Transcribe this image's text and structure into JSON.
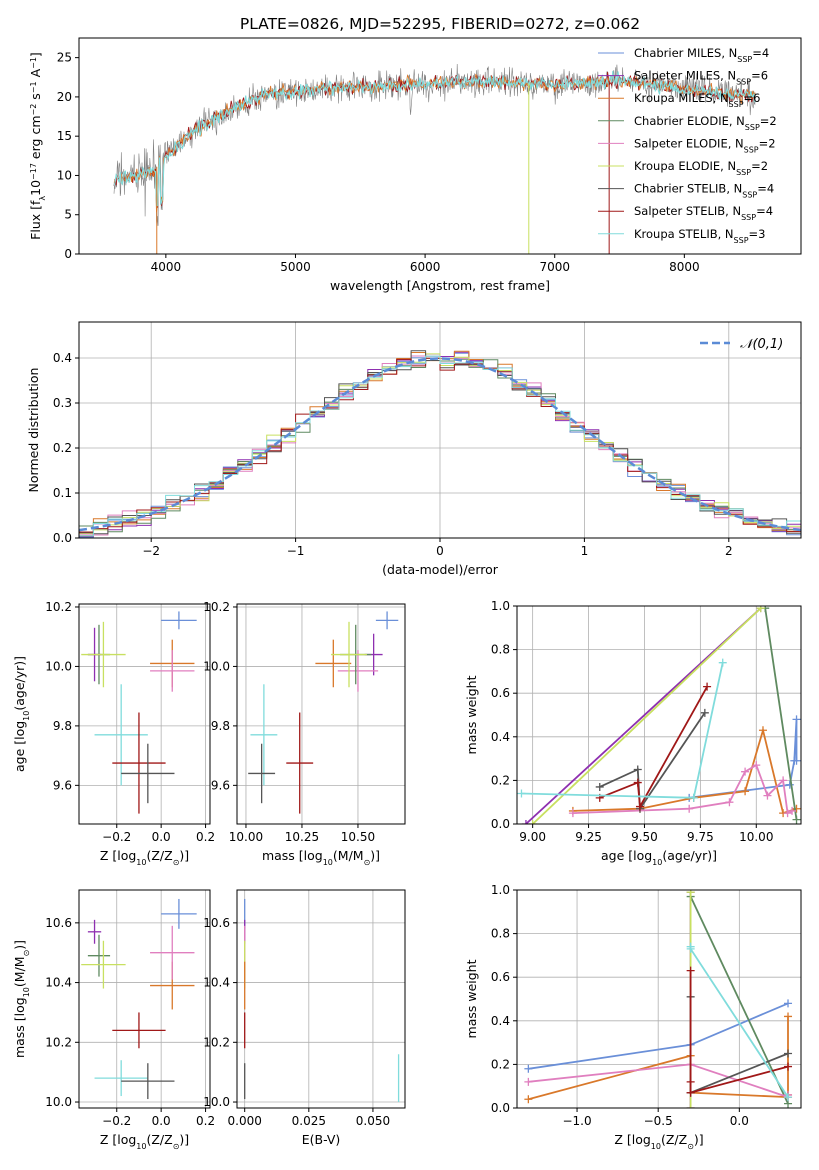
{
  "figure_title": "PLATE=0826, MJD=52295, FIBERID=0272, z=0.062",
  "colors": {
    "cm": "#6a8fd8",
    "sm": "#8e2fb0",
    "km": "#d9782a",
    "ce": "#5f8a60",
    "se": "#e07fbf",
    "ke": "#c8e060",
    "cs": "#555555",
    "ss": "#a01818",
    "ks": "#80dcdc",
    "gauss": "#5b8bd6"
  },
  "legend": {
    "cm": {
      "pre": "Chabrier MILES, N",
      "sub": "SSP",
      "post": "=4"
    },
    "sm": {
      "pre": "Salpeter MILES, N",
      "sub": "SSP",
      "post": "=6"
    },
    "km": {
      "pre": "Kroupa MILES, N",
      "sub": "SSP",
      "post": "=6"
    },
    "ce": {
      "pre": "Chabrier ELODIE, N",
      "sub": "SSP",
      "post": "=2"
    },
    "se": {
      "pre": "Salpeter ELODIE, N",
      "sub": "SSP",
      "post": "=2"
    },
    "ke": {
      "pre": "Kroupa ELODIE, N",
      "sub": "SSP",
      "post": "=2"
    },
    "cs": {
      "pre": "Chabrier STELIB, N",
      "sub": "SSP",
      "post": "=4"
    },
    "ss": {
      "pre": "Salpeter STELIB, N",
      "sub": "SSP",
      "post": "=4"
    },
    "ks": {
      "pre": "Kroupa STELIB, N",
      "sub": "SSP",
      "post": "=3"
    }
  },
  "chart_data": [
    {
      "id": "spectrum",
      "type": "line",
      "xlabel": "wavelength [Angstrom, rest frame]",
      "ylabel": "Flux [f_λ10^-17 erg cm^-2 s^-1 A^-1]",
      "xlim": [
        3330,
        8900
      ],
      "ylim": [
        0,
        27.5
      ],
      "xticks": [
        4000,
        5000,
        6000,
        7000,
        8000
      ],
      "yticks": [
        0,
        5,
        10,
        15,
        20,
        25
      ],
      "x_range": [
        3600,
        8550
      ],
      "continuum_anchors": [
        [
          3600,
          9.5
        ],
        [
          3900,
          10.5
        ],
        [
          4000,
          12.5
        ],
        [
          4200,
          15.5
        ],
        [
          4500,
          18.5
        ],
        [
          4800,
          20.5
        ],
        [
          5200,
          21.0
        ],
        [
          5800,
          21.5
        ],
        [
          6500,
          22.0
        ],
        [
          7000,
          21.5
        ],
        [
          7500,
          22.2
        ],
        [
          8000,
          21.0
        ],
        [
          8550,
          20.0
        ]
      ],
      "spikes": [
        {
          "x": 3930,
          "y": 0.0,
          "series": "km"
        },
        {
          "x": 6800,
          "y": 0.0,
          "series": "ke"
        },
        {
          "x": 7420,
          "y": 0.0,
          "series": "ss"
        }
      ],
      "grid": false,
      "legend_position": "right"
    },
    {
      "id": "residuals",
      "type": "histogram",
      "xlabel": "(data-model)/error",
      "ylabel": "Normed distribution",
      "xlim": [
        -2.5,
        2.5
      ],
      "ylim": [
        0,
        0.48
      ],
      "xticks": [
        -2,
        -1,
        0,
        1,
        2
      ],
      "yticks": [
        0.0,
        0.1,
        0.2,
        0.3,
        0.4
      ],
      "bins": {
        "start": -2.5,
        "width": 0.1,
        "count": 50
      },
      "reference": {
        "label": "𝒩(0,1)",
        "mean": 0,
        "sigma": 1
      },
      "grid": true,
      "legend_position": "top-right"
    },
    {
      "id": "age_vs_Z",
      "type": "errorbar",
      "xlabel": "Z [log10(Z/Z☉)]",
      "ylabel": "age  [log10(age/yr)]",
      "xlim": [
        -0.37,
        0.22
      ],
      "ylim": [
        9.47,
        10.21
      ],
      "xticks": [
        -0.2,
        0.0,
        0.2
      ],
      "yticks": [
        9.6,
        9.8,
        10.0,
        10.2
      ],
      "points": [
        {
          "series": "cm",
          "x": 0.08,
          "y": 10.155,
          "xerr": 0.08,
          "yerr": 0.03
        },
        {
          "series": "km",
          "x": 0.05,
          "y": 10.01,
          "xerr": 0.1,
          "yerr": 0.08
        },
        {
          "series": "se",
          "x": 0.05,
          "y": 9.985,
          "xerr": 0.1,
          "yerr": 0.07
        },
        {
          "series": "ce",
          "x": -0.28,
          "y": 10.04,
          "xerr": 0.05,
          "yerr": 0.1
        },
        {
          "series": "sm",
          "x": -0.3,
          "y": 10.04,
          "xerr": 0.03,
          "yerr": 0.09
        },
        {
          "series": "ke",
          "x": -0.26,
          "y": 10.04,
          "xerr": 0.1,
          "yerr": 0.11
        },
        {
          "series": "ks",
          "x": -0.18,
          "y": 9.77,
          "xerr": 0.12,
          "yerr": 0.17
        },
        {
          "series": "ss",
          "x": -0.1,
          "y": 9.675,
          "xerr": 0.12,
          "yerr": 0.17
        },
        {
          "series": "cs",
          "x": -0.06,
          "y": 9.64,
          "xerr": 0.12,
          "yerr": 0.1
        }
      ],
      "grid": true
    },
    {
      "id": "age_vs_mass",
      "type": "errorbar",
      "xlabel": "mass [log10(M/M☉)]",
      "ylabel": "",
      "xlim": [
        9.96,
        10.71
      ],
      "ylim": [
        9.47,
        10.21
      ],
      "xticks": [
        10.0,
        10.25,
        10.5
      ],
      "yticks": [
        9.6,
        9.8,
        10.0,
        10.2
      ],
      "points": [
        {
          "series": "cm",
          "x": 10.63,
          "y": 10.155,
          "xerr": 0.05,
          "yerr": 0.03
        },
        {
          "series": "sm",
          "x": 10.57,
          "y": 10.04,
          "xerr": 0.04,
          "yerr": 0.07
        },
        {
          "series": "km",
          "x": 10.39,
          "y": 10.01,
          "xerr": 0.08,
          "yerr": 0.08
        },
        {
          "series": "se",
          "x": 10.5,
          "y": 9.985,
          "xerr": 0.09,
          "yerr": 0.07
        },
        {
          "series": "ce",
          "x": 10.49,
          "y": 10.04,
          "xerr": 0.07,
          "yerr": 0.1
        },
        {
          "series": "ke",
          "x": 10.46,
          "y": 10.04,
          "xerr": 0.08,
          "yerr": 0.11
        },
        {
          "series": "ks",
          "x": 10.08,
          "y": 9.77,
          "xerr": 0.06,
          "yerr": 0.17
        },
        {
          "series": "ss",
          "x": 10.24,
          "y": 9.675,
          "xerr": 0.06,
          "yerr": 0.17
        },
        {
          "series": "cs",
          "x": 10.07,
          "y": 9.64,
          "xerr": 0.06,
          "yerr": 0.1
        }
      ],
      "grid": true
    },
    {
      "id": "weight_vs_age",
      "type": "line",
      "xlabel": "age  [log10(age/yr)]",
      "ylabel": "mass weight",
      "xlim": [
        8.93,
        10.2
      ],
      "ylim": [
        0,
        1.0
      ],
      "xticks": [
        9.0,
        9.25,
        9.5,
        9.75,
        10.0
      ],
      "yticks": [
        0.0,
        0.2,
        0.4,
        0.6,
        0.8,
        1.0
      ],
      "series": [
        {
          "key": "cm",
          "x": [
            9.7,
            10.15,
            10.17,
            10.18,
            10.18
          ],
          "y": [
            0.12,
            0.18,
            0.29,
            0.48,
            0.29
          ]
        },
        {
          "key": "sm",
          "x": [
            8.97,
            10.02
          ],
          "y": [
            0.0,
            0.99
          ]
        },
        {
          "key": "km",
          "x": [
            9.18,
            9.48,
            9.72,
            9.95,
            10.03,
            10.12,
            10.18
          ],
          "y": [
            0.06,
            0.07,
            0.12,
            0.15,
            0.43,
            0.05,
            0.07
          ]
        },
        {
          "key": "ce",
          "x": [
            10.04,
            10.18
          ],
          "y": [
            0.99,
            0.02
          ]
        },
        {
          "key": "se",
          "x": [
            9.18,
            9.7,
            9.88,
            9.95,
            10.0,
            10.05,
            10.12,
            10.14,
            10.16
          ],
          "y": [
            0.05,
            0.07,
            0.1,
            0.24,
            0.27,
            0.13,
            0.2,
            0.05,
            0.06
          ]
        },
        {
          "key": "ke",
          "x": [
            9.0,
            10.02
          ],
          "y": [
            0.0,
            0.99
          ]
        },
        {
          "key": "cs",
          "x": [
            9.3,
            9.47,
            9.48,
            9.77
          ],
          "y": [
            0.17,
            0.25,
            0.07,
            0.51
          ]
        },
        {
          "key": "ss",
          "x": [
            9.3,
            9.47,
            9.48,
            9.78
          ],
          "y": [
            0.12,
            0.19,
            0.08,
            0.63
          ]
        },
        {
          "key": "ks",
          "x": [
            8.95,
            9.72,
            9.85
          ],
          "y": [
            0.14,
            0.12,
            0.74
          ]
        }
      ],
      "grid": true
    },
    {
      "id": "mass_vs_Z",
      "type": "errorbar",
      "xlabel": "Z [log10(Z/Z☉)]",
      "ylabel": "mass [log10(M/M☉)]",
      "xlim": [
        -0.37,
        0.22
      ],
      "ylim": [
        9.98,
        10.71
      ],
      "xticks": [
        -0.2,
        0.0,
        0.2
      ],
      "yticks": [
        10.0,
        10.2,
        10.4,
        10.6
      ],
      "points": [
        {
          "series": "cm",
          "x": 0.08,
          "y": 10.63,
          "xerr": 0.08,
          "yerr": 0.05
        },
        {
          "series": "sm",
          "x": -0.3,
          "y": 10.57,
          "xerr": 0.03,
          "yerr": 0.04
        },
        {
          "series": "km",
          "x": 0.05,
          "y": 10.39,
          "xerr": 0.1,
          "yerr": 0.08
        },
        {
          "series": "se",
          "x": 0.05,
          "y": 10.5,
          "xerr": 0.1,
          "yerr": 0.09
        },
        {
          "series": "ce",
          "x": -0.28,
          "y": 10.49,
          "xerr": 0.05,
          "yerr": 0.07
        },
        {
          "series": "ke",
          "x": -0.26,
          "y": 10.46,
          "xerr": 0.1,
          "yerr": 0.08
        },
        {
          "series": "ks",
          "x": -0.18,
          "y": 10.08,
          "xerr": 0.12,
          "yerr": 0.06
        },
        {
          "series": "ss",
          "x": -0.1,
          "y": 10.24,
          "xerr": 0.12,
          "yerr": 0.06
        },
        {
          "series": "cs",
          "x": -0.06,
          "y": 10.07,
          "xerr": 0.12,
          "yerr": 0.06
        }
      ],
      "grid": true
    },
    {
      "id": "mass_vs_EBV",
      "type": "errorbar",
      "xlabel": "E(B-V)",
      "ylabel": "",
      "xlim": [
        -0.003,
        0.0625
      ],
      "ylim": [
        9.98,
        10.71
      ],
      "xticks": [
        0.0,
        0.025,
        0.05
      ],
      "yticks": [
        10.0,
        10.2,
        10.4,
        10.6
      ],
      "points": [
        {
          "series": "cm",
          "x": 0.0,
          "y": 10.63,
          "xerr": 0,
          "yerr": 0.05
        },
        {
          "series": "sm",
          "x": 0.0,
          "y": 10.57,
          "xerr": 0,
          "yerr": 0.04
        },
        {
          "series": "se",
          "x": 0.0,
          "y": 10.5,
          "xerr": 0,
          "yerr": 0.09
        },
        {
          "series": "ke",
          "x": 0.0,
          "y": 10.46,
          "xerr": 0,
          "yerr": 0.08
        },
        {
          "series": "km",
          "x": 0.0,
          "y": 10.39,
          "xerr": 0,
          "yerr": 0.08
        },
        {
          "series": "ss",
          "x": 0.0,
          "y": 10.24,
          "xerr": 0,
          "yerr": 0.06
        },
        {
          "series": "cs",
          "x": 0.0,
          "y": 10.07,
          "xerr": 0,
          "yerr": 0.06
        },
        {
          "series": "ks",
          "x": 0.06,
          "y": 10.08,
          "xerr": 0,
          "yerr": 0.08
        }
      ],
      "grid": true
    },
    {
      "id": "weight_vs_Z",
      "type": "line",
      "xlabel": "Z [log10(Z/Z☉)]",
      "ylabel": "mass weight",
      "xlim": [
        -1.37,
        0.38
      ],
      "ylim": [
        0,
        1.0
      ],
      "xticks": [
        -1.0,
        -0.5,
        0.0
      ],
      "yticks": [
        0.0,
        0.2,
        0.4,
        0.6,
        0.8,
        1.0
      ],
      "series": [
        {
          "key": "cm",
          "x": [
            -1.3,
            -0.3,
            0.3
          ],
          "y": [
            0.18,
            0.29,
            0.48
          ]
        },
        {
          "key": "sm",
          "x": [
            -0.3,
            -0.3
          ],
          "y": [
            0.0,
            0.99
          ]
        },
        {
          "key": "km",
          "x": [
            -1.3,
            -0.3,
            -0.3,
            0.3,
            0.3,
            0.3
          ],
          "y": [
            0.04,
            0.24,
            0.07,
            0.05,
            0.42,
            0.06
          ]
        },
        {
          "key": "ce",
          "x": [
            -0.3,
            0.3
          ],
          "y": [
            0.97,
            0.02
          ]
        },
        {
          "key": "se",
          "x": [
            -1.3,
            -0.3,
            0.3,
            0.3
          ],
          "y": [
            0.12,
            0.2,
            0.05,
            0.06
          ]
        },
        {
          "key": "ke",
          "x": [
            -0.3,
            -0.3
          ],
          "y": [
            0.0,
            0.99
          ]
        },
        {
          "key": "cs",
          "x": [
            -0.3,
            -0.3,
            0.3
          ],
          "y": [
            0.51,
            0.07,
            0.25
          ]
        },
        {
          "key": "ss",
          "x": [
            -0.3,
            -0.3,
            -0.3,
            0.3
          ],
          "y": [
            0.63,
            0.12,
            0.07,
            0.19
          ]
        },
        {
          "key": "ks",
          "x": [
            -0.3,
            -0.3,
            0.3
          ],
          "y": [
            0.74,
            0.73,
            0.05
          ]
        }
      ],
      "grid": true
    }
  ]
}
